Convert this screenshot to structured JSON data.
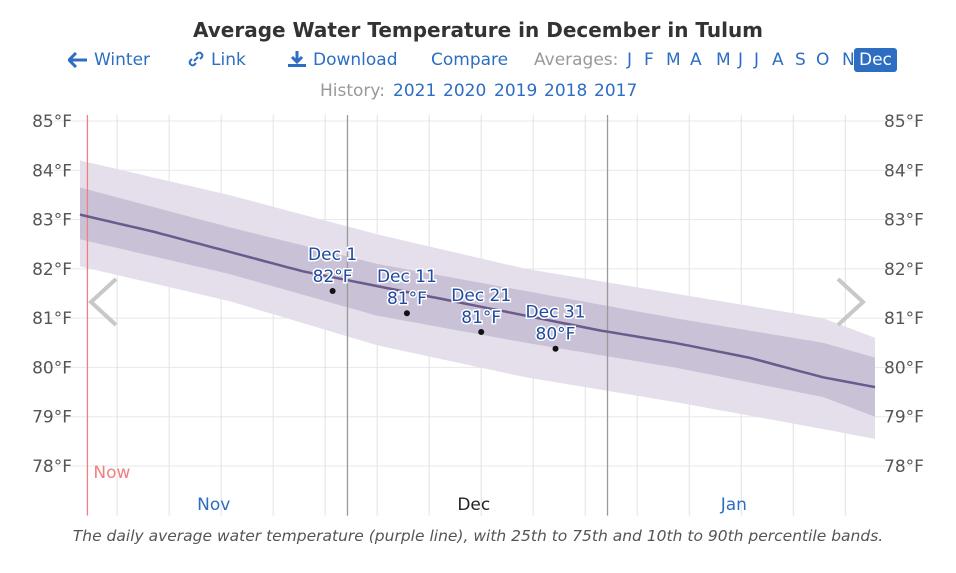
{
  "title": "Average Water Temperature in December in Tulum",
  "nav": {
    "winter_label": "Winter",
    "link_label": "Link",
    "download_label": "Download",
    "compare_label": "Compare",
    "averages_label": "Averages:",
    "months": [
      "J",
      "F",
      "M",
      "A",
      "M",
      "J",
      "J",
      "A",
      "S",
      "O",
      "N",
      "Dec"
    ],
    "active_month": "Dec"
  },
  "history": {
    "label": "History:",
    "years": [
      "2021",
      "2020",
      "2019",
      "2018",
      "2017"
    ]
  },
  "caption": "The daily average water temperature (purple line), with 25th to 75th and 10th to 90th percentile bands.",
  "colors": {
    "link": "#2d6ec2",
    "line": "#6b5a8c",
    "band_inner": "#c9c1d6",
    "band_outer": "#e4dfea",
    "now": "#f08080"
  },
  "chart_data": {
    "type": "line",
    "ylabel_unit": "°F",
    "ylim": [
      77.5,
      85
    ],
    "yticks": [
      78,
      79,
      80,
      81,
      82,
      83,
      84,
      85
    ],
    "ytick_labels": [
      "78°F",
      "79°F",
      "80°F",
      "81°F",
      "82°F",
      "83°F",
      "84°F",
      "85°F"
    ],
    "x_range_days": [
      0,
      107
    ],
    "now_day": 1,
    "now_label": "Now",
    "month_labels": [
      {
        "label": "Nov",
        "day": 18
      },
      {
        "label": "Dec",
        "day": 53
      },
      {
        "label": "Jan",
        "day": 88
      }
    ],
    "month_boundaries": [
      36,
      71
    ],
    "series": [
      {
        "name": "average",
        "days": [
          0,
          10,
          20,
          30,
          40,
          50,
          60,
          70,
          80,
          90,
          100,
          107
        ],
        "values": [
          83.1,
          82.75,
          82.35,
          81.95,
          81.65,
          81.35,
          81.05,
          80.75,
          80.5,
          80.2,
          79.8,
          79.6
        ]
      },
      {
        "name": "p25",
        "days": [
          0,
          20,
          40,
          60,
          80,
          100,
          107
        ],
        "values": [
          82.6,
          81.9,
          81.05,
          80.5,
          80.0,
          79.4,
          79.0
        ]
      },
      {
        "name": "p75",
        "days": [
          0,
          20,
          40,
          60,
          80,
          100,
          107
        ],
        "values": [
          83.65,
          82.85,
          82.1,
          81.55,
          81.0,
          80.5,
          80.2
        ]
      },
      {
        "name": "p10",
        "days": [
          0,
          20,
          40,
          60,
          80,
          100,
          107
        ],
        "values": [
          82.05,
          81.35,
          80.45,
          79.8,
          79.3,
          78.75,
          78.55
        ]
      },
      {
        "name": "p90",
        "days": [
          0,
          20,
          40,
          60,
          80,
          100,
          107
        ],
        "values": [
          84.2,
          83.5,
          82.7,
          82.0,
          81.5,
          81.0,
          80.6
        ]
      }
    ],
    "annotations": [
      {
        "date": "Dec 1",
        "value_label": "82°F",
        "day": 34,
        "value": 81.55
      },
      {
        "date": "Dec 11",
        "value_label": "81°F",
        "day": 44,
        "value": 81.1
      },
      {
        "date": "Dec 21",
        "value_label": "81°F",
        "day": 54,
        "value": 80.72
      },
      {
        "date": "Dec 31",
        "value_label": "80°F",
        "day": 64,
        "value": 80.38
      }
    ]
  }
}
